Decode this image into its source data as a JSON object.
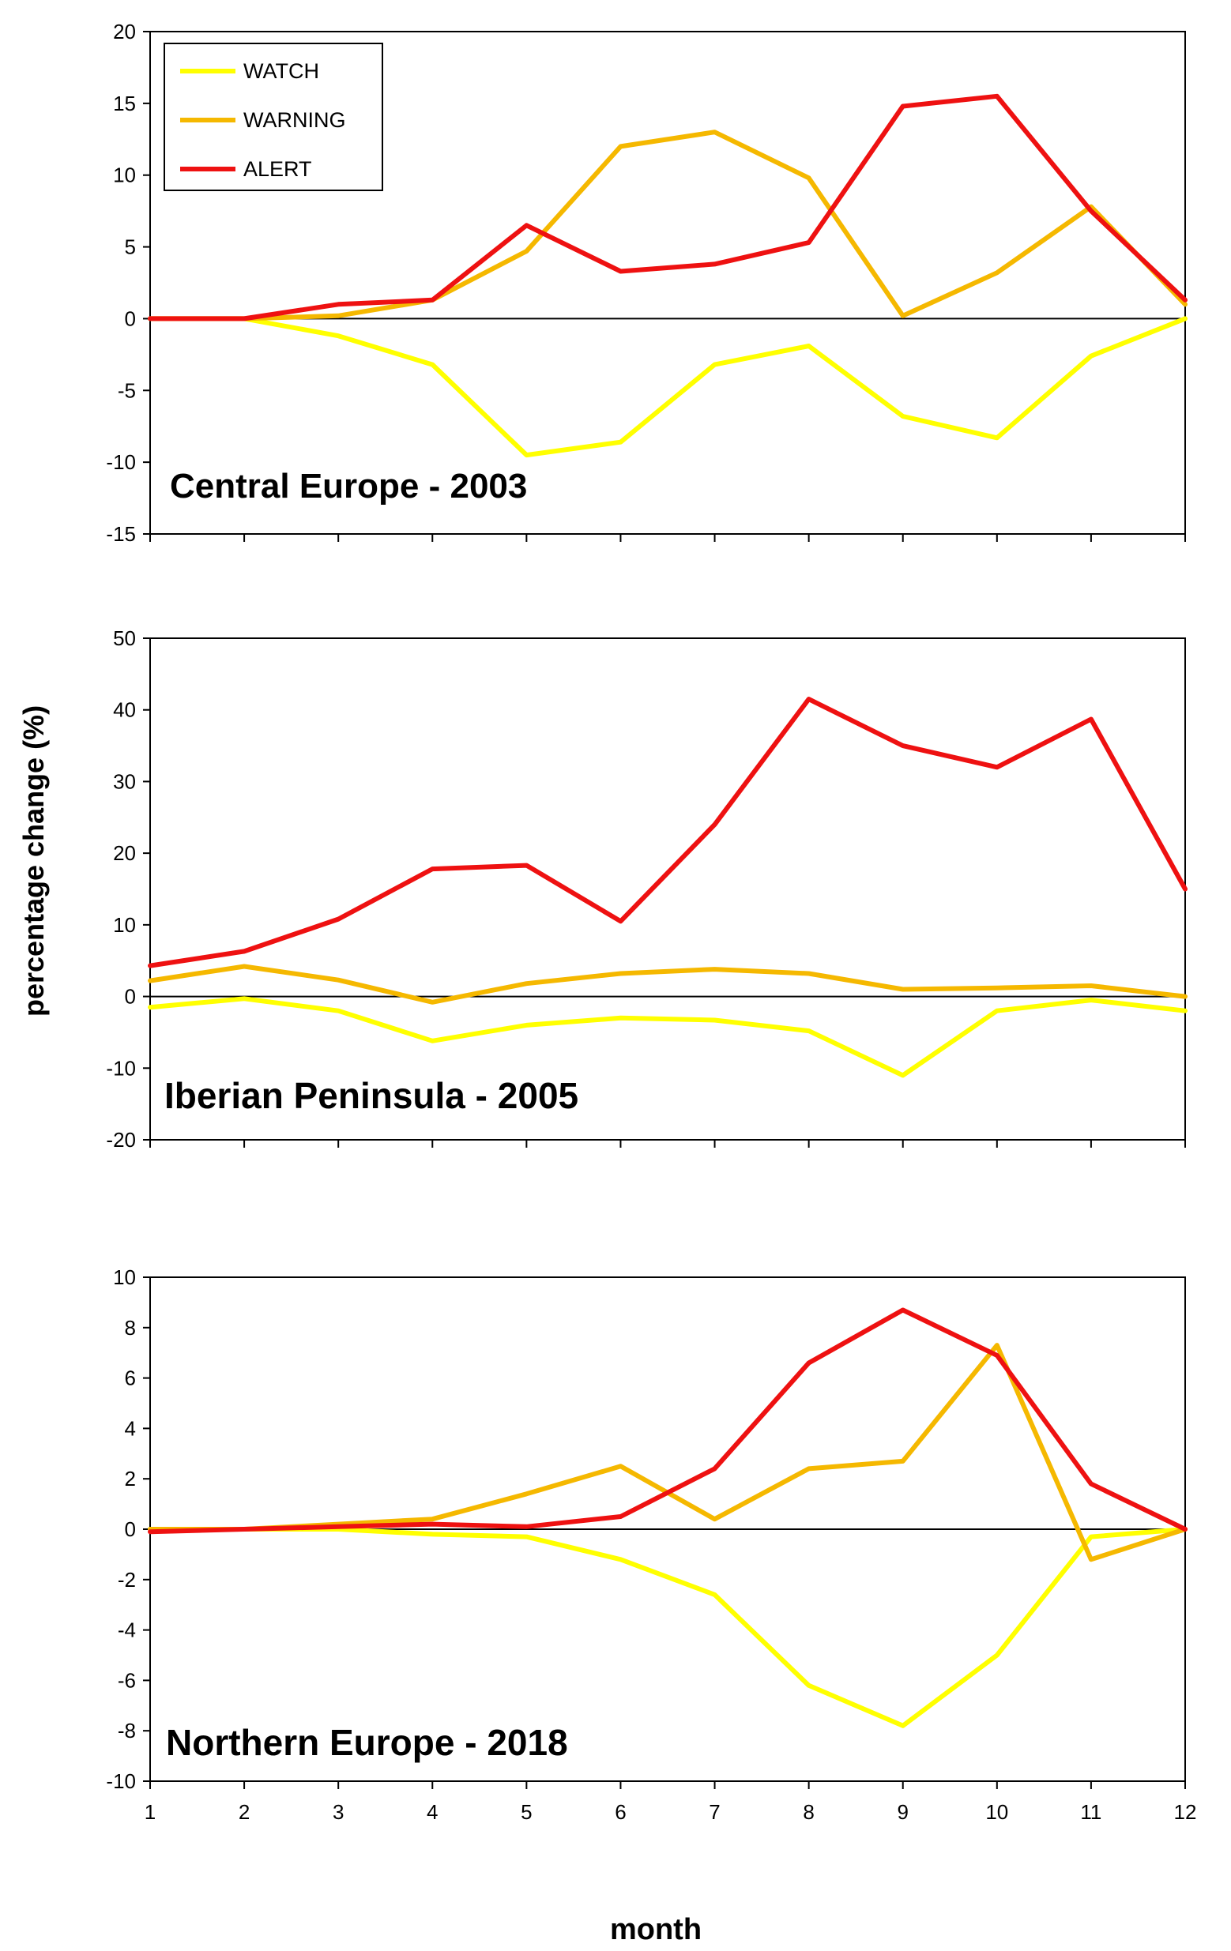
{
  "figure": {
    "ylabel": "percentage change (%)",
    "xlabel": "month"
  },
  "legend": [
    {
      "name": "WATCH",
      "color": "#ffff00"
    },
    {
      "name": "WARNING",
      "color": "#f5b800"
    },
    {
      "name": "ALERT",
      "color": "#ee1111"
    }
  ],
  "chart_data": [
    {
      "type": "line",
      "title": "Central Europe - 2003",
      "x": [
        1,
        2,
        3,
        4,
        5,
        6,
        7,
        8,
        9,
        10,
        11,
        12
      ],
      "ylim": [
        -15,
        20
      ],
      "yticks": [
        -15,
        -10,
        -5,
        0,
        5,
        10,
        15,
        20
      ],
      "series": [
        {
          "name": "WATCH",
          "values": [
            0,
            0,
            -1.2,
            -3.2,
            -9.5,
            -8.6,
            -3.2,
            -1.9,
            -6.8,
            -8.3,
            -2.6,
            0
          ]
        },
        {
          "name": "WARNING",
          "values": [
            0,
            0,
            0.2,
            1.3,
            4.7,
            12.0,
            13.0,
            9.8,
            0.2,
            3.2,
            7.8,
            1.0
          ]
        },
        {
          "name": "ALERT",
          "values": [
            0,
            0,
            1.0,
            1.3,
            6.5,
            3.3,
            3.8,
            5.3,
            14.8,
            15.5,
            7.5,
            1.3
          ]
        }
      ],
      "xlabel": "",
      "ylabel": "percentage change (%)"
    },
    {
      "type": "line",
      "title": "Iberian Peninsula - 2005",
      "x": [
        1,
        2,
        3,
        4,
        5,
        6,
        7,
        8,
        9,
        10,
        11,
        12
      ],
      "ylim": [
        -20,
        50
      ],
      "yticks": [
        -20,
        -10,
        0,
        10,
        20,
        30,
        40,
        50
      ],
      "series": [
        {
          "name": "WATCH",
          "values": [
            -1.5,
            -0.3,
            -2.0,
            -6.2,
            -4.0,
            -3.0,
            -3.3,
            -4.8,
            -11.0,
            -2.0,
            -0.5,
            -2.0
          ]
        },
        {
          "name": "WARNING",
          "values": [
            2.2,
            4.2,
            2.3,
            -0.8,
            1.8,
            3.2,
            3.8,
            3.2,
            1.0,
            1.2,
            1.5,
            0
          ]
        },
        {
          "name": "ALERT",
          "values": [
            4.3,
            6.3,
            10.8,
            17.8,
            18.3,
            10.5,
            24.0,
            41.5,
            35.0,
            32.0,
            38.7,
            15.0
          ]
        }
      ],
      "xlabel": "",
      "ylabel": "percentage change (%)"
    },
    {
      "type": "line",
      "title": "Northern Europe - 2018",
      "x": [
        1,
        2,
        3,
        4,
        5,
        6,
        7,
        8,
        9,
        10,
        11,
        12
      ],
      "ylim": [
        -10,
        10
      ],
      "yticks": [
        -10,
        -8,
        -6,
        -4,
        -2,
        0,
        2,
        4,
        6,
        8,
        10
      ],
      "series": [
        {
          "name": "WATCH",
          "values": [
            0,
            0,
            0,
            -0.2,
            -0.3,
            -1.2,
            -2.6,
            -6.2,
            -7.8,
            -5.0,
            -0.3,
            0
          ]
        },
        {
          "name": "WARNING",
          "values": [
            0,
            0,
            0.2,
            0.4,
            1.4,
            2.5,
            0.4,
            2.4,
            2.7,
            7.3,
            -1.2,
            0
          ]
        },
        {
          "name": "ALERT",
          "values": [
            -0.1,
            0,
            0.1,
            0.2,
            0.1,
            0.5,
            2.4,
            6.6,
            8.7,
            6.9,
            1.8,
            0
          ]
        }
      ],
      "xlabel": "month",
      "ylabel": "percentage change (%)"
    }
  ]
}
